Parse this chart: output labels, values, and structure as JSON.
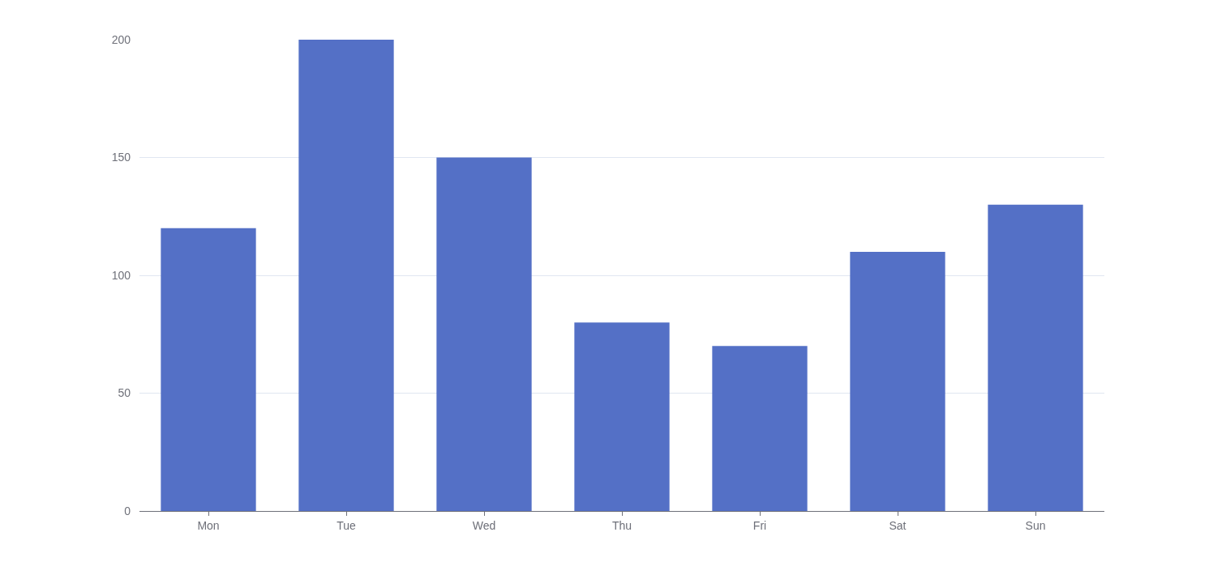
{
  "chart_data": {
    "type": "bar",
    "categories": [
      "Mon",
      "Tue",
      "Wed",
      "Thu",
      "Fri",
      "Sat",
      "Sun"
    ],
    "values": [
      120,
      200,
      150,
      80,
      70,
      110,
      130
    ],
    "color": "#5470c6",
    "ylim": [
      0,
      200
    ],
    "yticks": [
      0,
      50,
      100,
      150,
      200
    ],
    "grid": "y"
  }
}
